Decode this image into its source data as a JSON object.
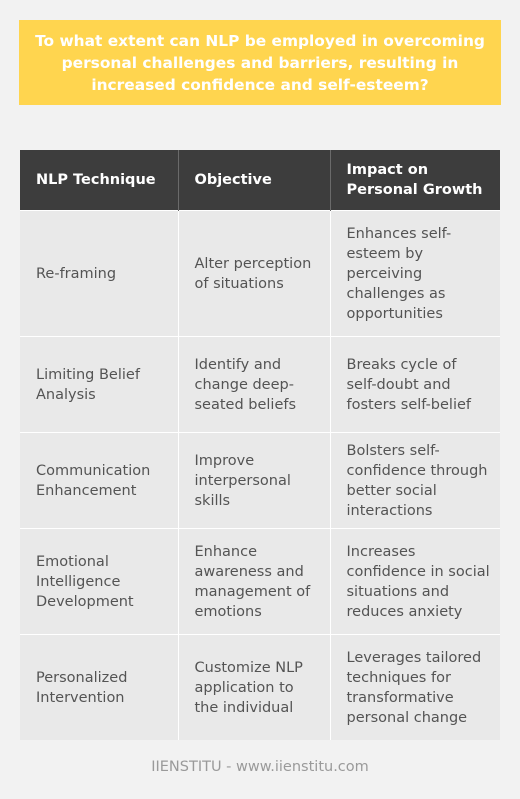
{
  "title": "To what extent can NLP be employed in overcoming personal challenges and barriers, resulting in increased confidence and self-esteem?",
  "table": {
    "headers": [
      "NLP Technique",
      "Objective",
      "Impact on Personal Growth"
    ],
    "rows": [
      [
        "Re-framing",
        "Alter perception of situations",
        "Enhances self-esteem by perceiving challenges as opportunities"
      ],
      [
        "Limiting Belief Analysis",
        "Identify and change deep-seated beliefs",
        "Breaks cycle of self-doubt and fosters self-belief"
      ],
      [
        "Communication Enhancement",
        "Improve interpersonal skills",
        "Bolsters self-confidence through better social interactions"
      ],
      [
        "Emotional Intelligence Development",
        "Enhance awareness and management of emotions",
        "Increases confidence in social situations and reduces anxiety"
      ],
      [
        "Personalized Intervention",
        "Customize NLP application to the individual",
        "Leverages tailored techniques for transformative personal change"
      ]
    ]
  },
  "footer": "IIENSTITU - www.iienstitu.com",
  "colors": {
    "title_background": "#ffd54f",
    "header_background": "#3d3d3d",
    "cell_background": "#e9e9e9",
    "page_background": "#f2f2f2"
  }
}
